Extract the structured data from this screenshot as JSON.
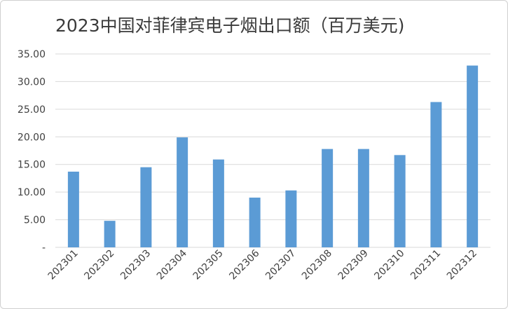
{
  "chart_data": {
    "type": "bar",
    "title": "2023中国对菲律宾电子烟出口额（百万美元)",
    "categories": [
      "202301",
      "202302",
      "202303",
      "202304",
      "202305",
      "202306",
      "202307",
      "202308",
      "202309",
      "202310",
      "202311",
      "202312"
    ],
    "values": [
      13.7,
      4.8,
      14.5,
      19.9,
      15.9,
      9.0,
      10.3,
      17.8,
      17.8,
      16.7,
      26.3,
      32.9
    ],
    "ylim": [
      0,
      35
    ],
    "yticks": [
      "-",
      "5.00",
      "10.00",
      "15.00",
      "20.00",
      "25.00",
      "30.00",
      "35.00"
    ],
    "grid": true,
    "bar_color": "#5b9bd5",
    "grid_color": "#d9d9d9",
    "xlabel": "",
    "ylabel": ""
  }
}
